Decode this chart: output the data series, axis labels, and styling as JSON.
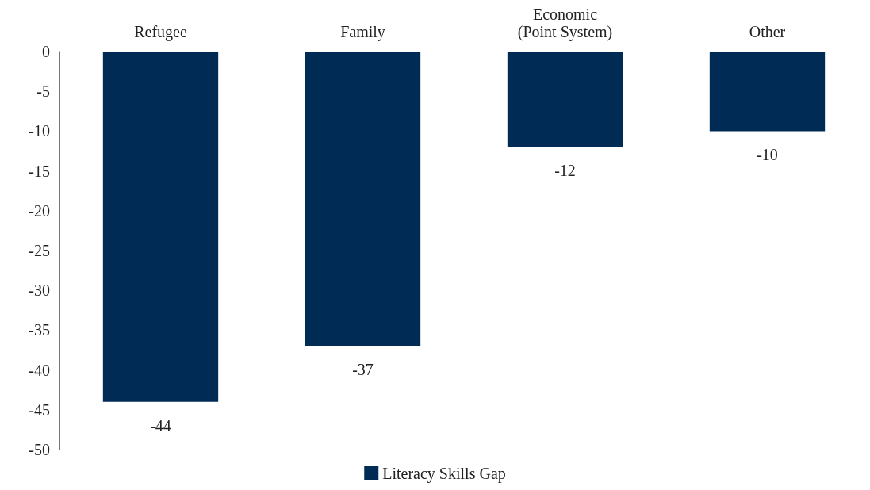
{
  "chart_data": {
    "type": "bar",
    "categories": [
      "Refugee",
      "Family",
      "Economic\n(Point System)",
      "Other"
    ],
    "series": [
      {
        "name": "Literacy Skills Gap",
        "color": "#002b55",
        "values": [
          -44,
          -37,
          -12,
          -10
        ]
      }
    ],
    "ylim": [
      -50,
      0
    ],
    "yticks": [
      0,
      -5,
      -10,
      -15,
      -20,
      -25,
      -30,
      -35,
      -40,
      -45,
      -50
    ],
    "data_labels": true,
    "grid": false,
    "legend": "bottom"
  }
}
